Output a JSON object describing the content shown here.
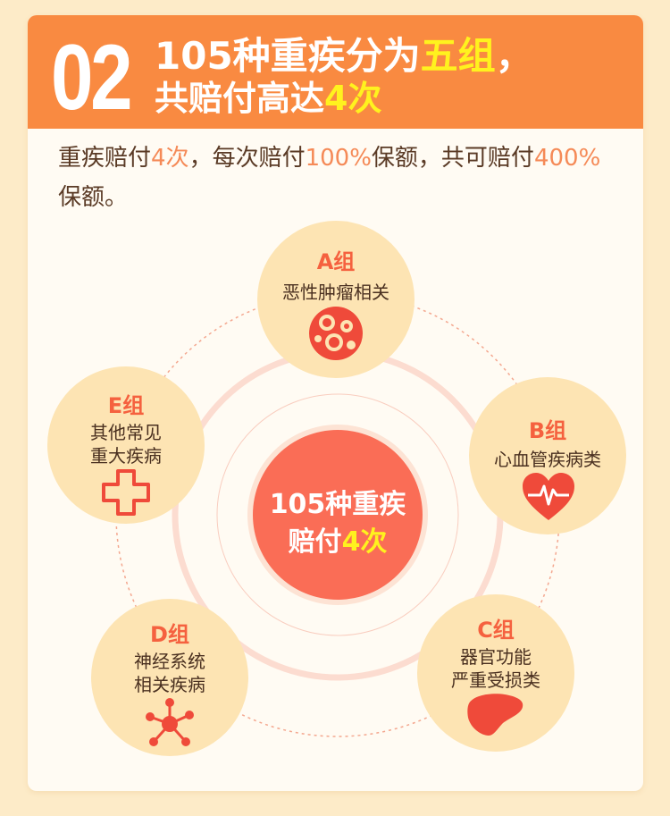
{
  "header": {
    "number": "02",
    "line1_prefix": "105种重疾分为",
    "line1_highlight": "五组",
    "line1_suffix": "，",
    "line2_prefix": "共赔付高达",
    "line2_highlight": "4次"
  },
  "intro": {
    "p1": "重疾赔付",
    "h1": "4次",
    "p2": "，每次赔付",
    "h2": "100%",
    "p3": "保额，共可赔付",
    "h3": "400%",
    "p4": "保额。"
  },
  "center": {
    "line1": "105种重疾",
    "line2_prefix": "赔付",
    "line2_highlight": "4次"
  },
  "groups": [
    {
      "letter": "A组",
      "line1": "恶性肿瘤相关",
      "line2": "",
      "icon": "tumor-cells-icon"
    },
    {
      "letter": "B组",
      "line1": "心血管疾病类",
      "line2": "",
      "icon": "heart-pulse-icon"
    },
    {
      "letter": "C组",
      "line1": "器官功能",
      "line2": "严重受损类",
      "icon": "liver-icon"
    },
    {
      "letter": "D组",
      "line1": "神经系统",
      "line2": "相关疾病",
      "icon": "neuron-network-icon"
    },
    {
      "letter": "E组",
      "line1": "其他常见",
      "line2": "重大疾病",
      "icon": "medical-cross-icon"
    }
  ],
  "colors": {
    "header_bg": "#f98a41",
    "highlight_yellow": "#fff21e",
    "accent_red": "#fa6d56",
    "node_bg": "#fde4b3",
    "letter_red": "#f5613f",
    "intro_highlight": "#f58a57"
  }
}
